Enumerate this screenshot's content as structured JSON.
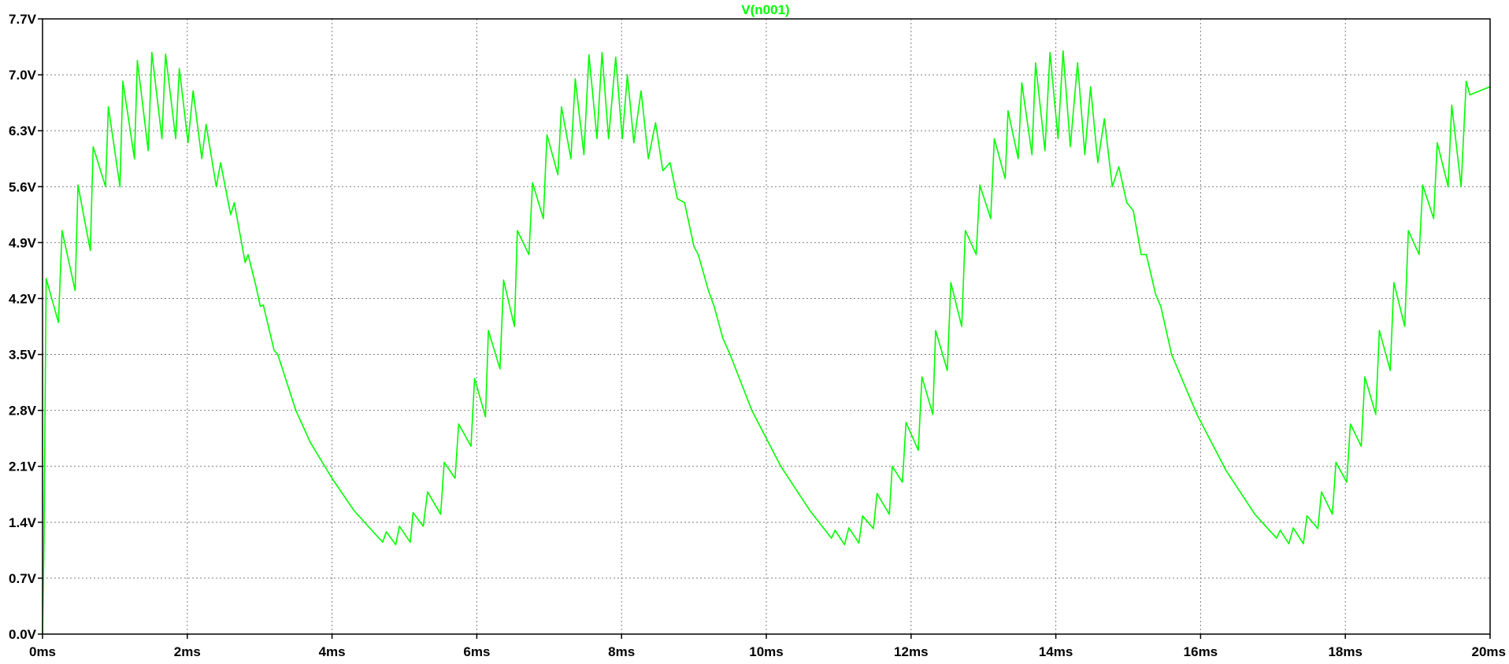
{
  "chart_data": {
    "type": "line",
    "title": "V(n001)",
    "xlabel": "",
    "ylabel": "",
    "xlim": [
      0,
      20
    ],
    "ylim": [
      0,
      7.7
    ],
    "x_unit": "ms",
    "y_unit": "V",
    "grid": true,
    "grid_style": "dotted",
    "x_ticks": [
      0,
      2,
      4,
      6,
      8,
      10,
      12,
      14,
      16,
      18,
      20
    ],
    "x_tick_labels": [
      "0ms",
      "2ms",
      "4ms",
      "6ms",
      "8ms",
      "10ms",
      "12ms",
      "14ms",
      "16ms",
      "18ms",
      "20ms"
    ],
    "y_ticks": [
      0,
      0.7,
      1.4,
      2.1,
      2.8,
      3.5,
      4.2,
      4.9,
      5.6,
      6.3,
      7.0,
      7.7
    ],
    "y_tick_labels": [
      "0.0V",
      "0.7V",
      "1.4V",
      "2.1V",
      "2.8V",
      "3.5V",
      "4.2V",
      "4.9V",
      "5.6V",
      "6.3V",
      "7.0V",
      "7.7V"
    ],
    "series": [
      {
        "name": "V(n001)",
        "color": "#00ff00",
        "points": [
          [
            0.0,
            0.0
          ],
          [
            0.02,
            1.1
          ],
          [
            0.05,
            4.45
          ],
          [
            0.22,
            3.9
          ],
          [
            0.27,
            5.05
          ],
          [
            0.45,
            4.3
          ],
          [
            0.49,
            5.62
          ],
          [
            0.66,
            4.8
          ],
          [
            0.7,
            6.1
          ],
          [
            0.87,
            5.6
          ],
          [
            0.91,
            6.6
          ],
          [
            1.07,
            5.6
          ],
          [
            1.11,
            6.92
          ],
          [
            1.27,
            5.95
          ],
          [
            1.31,
            7.18
          ],
          [
            1.46,
            6.05
          ],
          [
            1.51,
            7.28
          ],
          [
            1.65,
            6.2
          ],
          [
            1.7,
            7.26
          ],
          [
            1.84,
            6.2
          ],
          [
            1.89,
            7.08
          ],
          [
            2.01,
            6.15
          ],
          [
            2.08,
            6.8
          ],
          [
            2.2,
            5.95
          ],
          [
            2.26,
            6.38
          ],
          [
            2.4,
            5.6
          ],
          [
            2.46,
            5.9
          ],
          [
            2.6,
            5.25
          ],
          [
            2.65,
            5.4
          ],
          [
            2.8,
            4.65
          ],
          [
            2.84,
            4.75
          ],
          [
            2.95,
            4.35
          ],
          [
            3.01,
            4.1
          ],
          [
            3.05,
            4.12
          ],
          [
            3.2,
            3.55
          ],
          [
            3.25,
            3.5
          ],
          [
            3.5,
            2.8
          ],
          [
            3.7,
            2.4
          ],
          [
            4.0,
            1.95
          ],
          [
            4.3,
            1.55
          ],
          [
            4.6,
            1.25
          ],
          [
            4.7,
            1.15
          ],
          [
            4.75,
            1.28
          ],
          [
            4.88,
            1.12
          ],
          [
            4.93,
            1.35
          ],
          [
            5.08,
            1.15
          ],
          [
            5.12,
            1.52
          ],
          [
            5.26,
            1.35
          ],
          [
            5.32,
            1.78
          ],
          [
            5.5,
            1.5
          ],
          [
            5.55,
            2.15
          ],
          [
            5.7,
            1.95
          ],
          [
            5.75,
            2.63
          ],
          [
            5.92,
            2.35
          ],
          [
            5.97,
            3.2
          ],
          [
            6.12,
            2.72
          ],
          [
            6.16,
            3.8
          ],
          [
            6.32,
            3.32
          ],
          [
            6.37,
            4.43
          ],
          [
            6.52,
            3.85
          ],
          [
            6.56,
            5.05
          ],
          [
            6.72,
            4.75
          ],
          [
            6.77,
            5.65
          ],
          [
            6.92,
            5.2
          ],
          [
            6.97,
            6.25
          ],
          [
            7.12,
            5.75
          ],
          [
            7.17,
            6.6
          ],
          [
            7.3,
            5.95
          ],
          [
            7.36,
            6.95
          ],
          [
            7.48,
            6.0
          ],
          [
            7.55,
            7.25
          ],
          [
            7.66,
            6.2
          ],
          [
            7.73,
            7.28
          ],
          [
            7.82,
            6.2
          ],
          [
            7.92,
            7.22
          ],
          [
            8.01,
            6.2
          ],
          [
            8.08,
            7.0
          ],
          [
            8.17,
            6.15
          ],
          [
            8.27,
            6.8
          ],
          [
            8.37,
            5.95
          ],
          [
            8.47,
            6.4
          ],
          [
            8.57,
            5.8
          ],
          [
            8.67,
            5.9
          ],
          [
            8.77,
            5.45
          ],
          [
            8.87,
            5.4
          ],
          [
            9.0,
            4.85
          ],
          [
            9.06,
            4.75
          ],
          [
            9.2,
            4.3
          ],
          [
            9.28,
            4.1
          ],
          [
            9.4,
            3.7
          ],
          [
            9.5,
            3.5
          ],
          [
            9.8,
            2.8
          ],
          [
            10.2,
            2.1
          ],
          [
            10.6,
            1.55
          ],
          [
            10.9,
            1.2
          ],
          [
            10.95,
            1.3
          ],
          [
            11.08,
            1.12
          ],
          [
            11.14,
            1.33
          ],
          [
            11.28,
            1.14
          ],
          [
            11.33,
            1.48
          ],
          [
            11.48,
            1.32
          ],
          [
            11.53,
            1.76
          ],
          [
            11.7,
            1.5
          ],
          [
            11.74,
            2.1
          ],
          [
            11.88,
            1.9
          ],
          [
            11.93,
            2.65
          ],
          [
            12.1,
            2.3
          ],
          [
            12.15,
            3.22
          ],
          [
            12.3,
            2.75
          ],
          [
            12.34,
            3.8
          ],
          [
            12.5,
            3.3
          ],
          [
            12.55,
            4.4
          ],
          [
            12.7,
            3.85
          ],
          [
            12.75,
            5.05
          ],
          [
            12.9,
            4.75
          ],
          [
            12.95,
            5.62
          ],
          [
            13.1,
            5.2
          ],
          [
            13.15,
            6.2
          ],
          [
            13.3,
            5.7
          ],
          [
            13.34,
            6.55
          ],
          [
            13.48,
            5.95
          ],
          [
            13.53,
            6.9
          ],
          [
            13.67,
            6.0
          ],
          [
            13.72,
            7.15
          ],
          [
            13.85,
            6.05
          ],
          [
            13.92,
            7.28
          ],
          [
            14.03,
            6.2
          ],
          [
            14.1,
            7.3
          ],
          [
            14.2,
            6.1
          ],
          [
            14.3,
            7.15
          ],
          [
            14.4,
            6.0
          ],
          [
            14.48,
            6.85
          ],
          [
            14.58,
            5.9
          ],
          [
            14.67,
            6.45
          ],
          [
            14.78,
            5.6
          ],
          [
            14.87,
            5.85
          ],
          [
            14.98,
            5.4
          ],
          [
            15.07,
            5.3
          ],
          [
            15.18,
            4.75
          ],
          [
            15.25,
            4.75
          ],
          [
            15.38,
            4.25
          ],
          [
            15.45,
            4.1
          ],
          [
            15.6,
            3.5
          ],
          [
            15.95,
            2.75
          ],
          [
            16.35,
            2.05
          ],
          [
            16.75,
            1.5
          ],
          [
            17.05,
            1.2
          ],
          [
            17.1,
            1.3
          ],
          [
            17.22,
            1.13
          ],
          [
            17.28,
            1.33
          ],
          [
            17.42,
            1.13
          ],
          [
            17.47,
            1.48
          ],
          [
            17.62,
            1.32
          ],
          [
            17.67,
            1.78
          ],
          [
            17.82,
            1.5
          ],
          [
            17.87,
            2.15
          ],
          [
            18.02,
            1.9
          ],
          [
            18.07,
            2.63
          ],
          [
            18.22,
            2.35
          ],
          [
            18.27,
            3.22
          ],
          [
            18.42,
            2.75
          ],
          [
            18.47,
            3.8
          ],
          [
            18.62,
            3.3
          ],
          [
            18.67,
            4.4
          ],
          [
            18.82,
            3.85
          ],
          [
            18.87,
            5.05
          ],
          [
            19.02,
            4.75
          ],
          [
            19.07,
            5.62
          ],
          [
            19.22,
            5.2
          ],
          [
            19.27,
            6.15
          ],
          [
            19.42,
            5.6
          ],
          [
            19.47,
            6.62
          ],
          [
            19.6,
            5.6
          ],
          [
            19.67,
            6.92
          ],
          [
            19.72,
            6.75
          ],
          [
            20.0,
            6.85
          ]
        ]
      }
    ]
  },
  "colors": {
    "background": "#ffffff",
    "axis": "#000000",
    "grid": "#7f7f7f",
    "trace": "#00ff00"
  }
}
